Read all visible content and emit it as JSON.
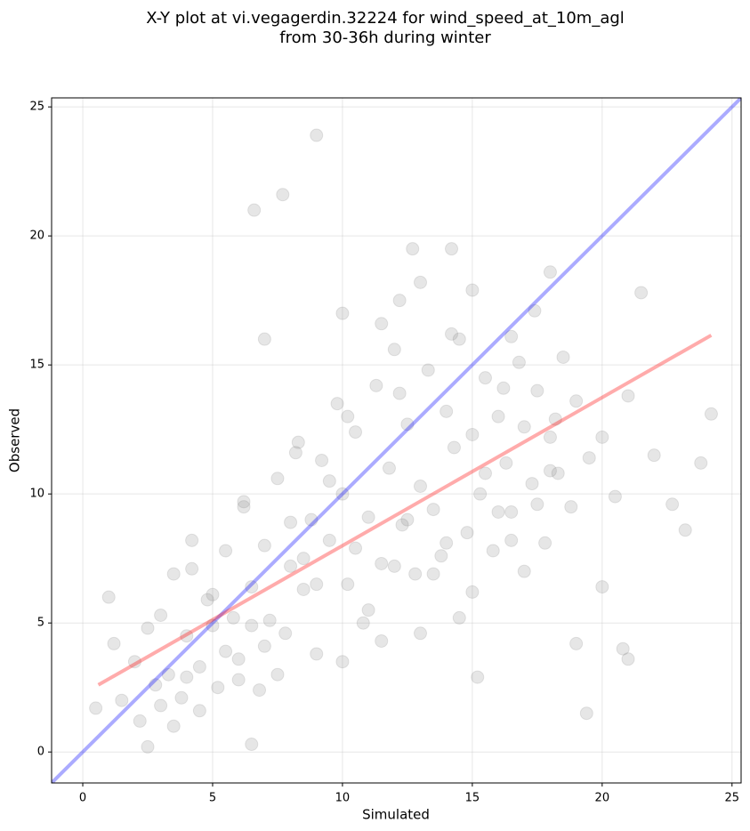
{
  "chart_data": {
    "type": "scatter",
    "title": [
      "X-Y plot at vi.vegagerdin.32224 for wind_speed_at_10m_agl",
      "from 30-36h during winter"
    ],
    "xlabel": "Simulated",
    "ylabel": "Observed",
    "xlim": [
      -1.2,
      25.35
    ],
    "ylim": [
      -1.2,
      25.35
    ],
    "xticks": [
      0,
      5,
      10,
      15,
      20,
      25
    ],
    "yticks": [
      0,
      5,
      10,
      15,
      20,
      25
    ],
    "grid": true,
    "color": "#808080",
    "alpha": 0.2,
    "x": [
      9.0,
      7.7,
      6.6,
      12.7,
      14.2,
      18.0,
      21.5,
      24.2,
      23.8,
      23.2,
      22.7,
      19.4,
      21.0,
      20.8,
      15.2,
      10.0,
      7.0,
      1.0,
      0.5,
      2.5,
      6.5,
      19.0,
      20.0,
      13.0,
      16.5,
      17.4,
      12.2,
      11.5,
      15.0,
      1.2,
      1.5,
      2.0,
      2.2,
      2.8,
      3.0,
      3.3,
      3.5,
      3.8,
      4.0,
      4.2,
      4.5,
      4.8,
      5.0,
      5.2,
      5.5,
      5.8,
      6.0,
      6.2,
      6.5,
      6.8,
      7.0,
      7.2,
      7.5,
      7.8,
      8.0,
      8.3,
      8.5,
      8.8,
      9.0,
      9.2,
      9.5,
      9.8,
      10.0,
      10.2,
      10.5,
      10.8,
      11.0,
      11.3,
      11.5,
      11.8,
      12.0,
      12.3,
      12.5,
      12.8,
      13.0,
      13.3,
      13.5,
      13.8,
      14.0,
      14.3,
      14.5,
      14.8,
      15.0,
      15.3,
      15.5,
      15.8,
      16.0,
      16.3,
      16.5,
      16.8,
      17.0,
      17.3,
      17.5,
      17.8,
      18.0,
      18.3,
      18.5,
      18.8,
      19.0,
      19.5,
      20.0,
      20.5,
      21.0,
      22.0,
      3.0,
      4.0,
      5.0,
      6.0,
      7.0,
      8.0,
      9.0,
      10.0,
      11.0,
      12.0,
      13.0,
      14.0,
      15.0,
      16.0,
      17.0,
      18.0,
      3.5,
      4.5,
      5.5,
      6.5,
      7.5,
      8.5,
      9.5,
      10.5,
      11.5,
      12.5,
      13.5,
      14.5,
      15.5,
      16.5,
      17.5,
      2.5,
      4.2,
      6.2,
      8.2,
      10.2,
      12.2,
      14.2,
      16.2,
      18.2
    ],
    "values": [
      23.9,
      21.6,
      21.0,
      19.5,
      19.5,
      18.6,
      17.8,
      13.1,
      11.2,
      8.6,
      9.6,
      1.5,
      3.6,
      4.0,
      2.9,
      17.0,
      16.0,
      6.0,
      1.7,
      0.2,
      0.3,
      4.2,
      6.4,
      18.2,
      16.1,
      17.1,
      17.5,
      16.6,
      17.9,
      4.2,
      2.0,
      3.5,
      1.2,
      2.6,
      5.3,
      3.0,
      6.9,
      2.1,
      4.5,
      8.2,
      3.3,
      5.9,
      4.9,
      2.5,
      7.8,
      5.2,
      3.6,
      9.5,
      6.4,
      2.4,
      8.0,
      5.1,
      10.6,
      4.6,
      7.2,
      12.0,
      6.3,
      9.0,
      3.8,
      11.3,
      8.2,
      13.5,
      10.0,
      6.5,
      12.4,
      5.0,
      9.1,
      14.2,
      7.3,
      11.0,
      15.6,
      8.8,
      12.7,
      6.9,
      10.3,
      14.8,
      9.4,
      7.6,
      13.2,
      11.8,
      16.0,
      8.5,
      12.3,
      10.0,
      14.5,
      7.8,
      13.0,
      11.2,
      9.3,
      15.1,
      12.6,
      10.4,
      14.0,
      8.1,
      12.2,
      10.8,
      15.3,
      9.5,
      13.6,
      11.4,
      12.2,
      9.9,
      13.8,
      11.5,
      1.8,
      2.9,
      6.1,
      2.8,
      4.1,
      8.9,
      6.5,
      3.5,
      5.5,
      7.2,
      4.6,
      8.1,
      6.2,
      9.3,
      7.0,
      10.9,
      1.0,
      1.6,
      3.9,
      4.9,
      3.0,
      7.5,
      10.5,
      7.9,
      4.3,
      9.0,
      6.9,
      5.2,
      10.8,
      8.2,
      9.6,
      4.8,
      7.1,
      9.7,
      11.6,
      13.0,
      13.9,
      16.2,
      14.1,
      12.9
    ],
    "lines": [
      {
        "color": "#0000ff",
        "x": [
          -1.2,
          25.35
        ],
        "values": [
          -1.2,
          25.35
        ]
      },
      {
        "color": "#ff0000",
        "x": [
          0.6,
          24.2
        ],
        "values": [
          2.6,
          16.15
        ]
      }
    ]
  }
}
